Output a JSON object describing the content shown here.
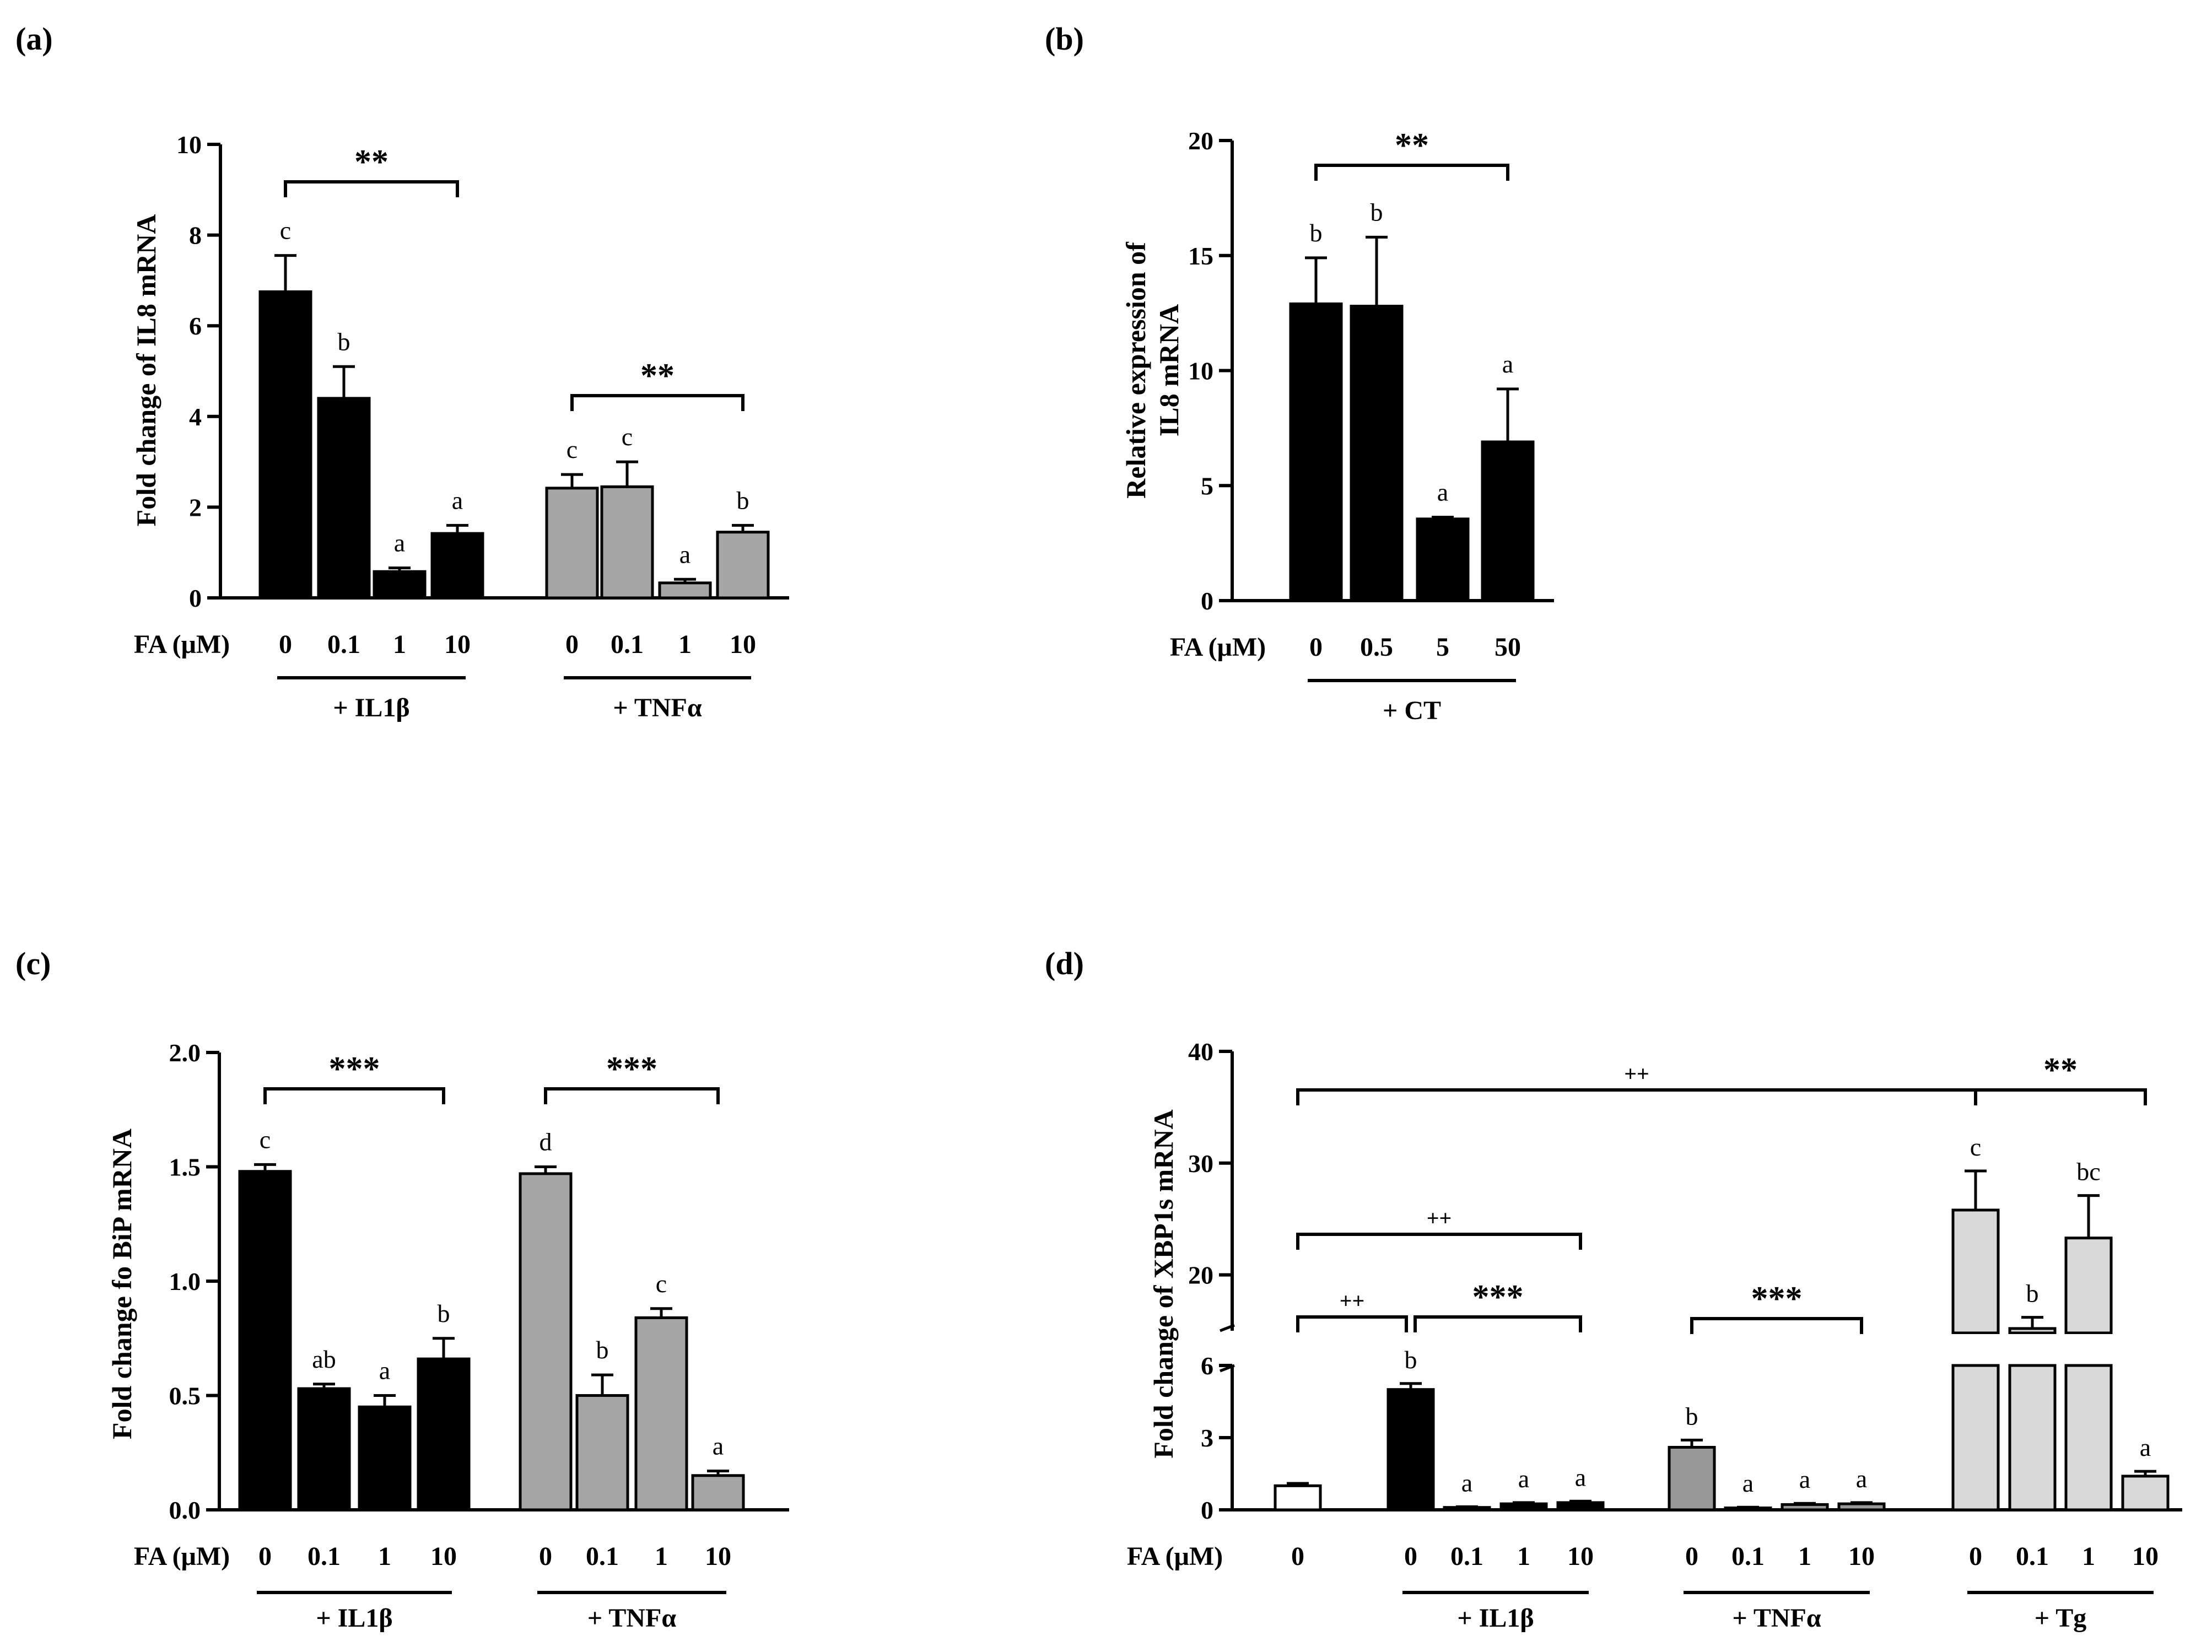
{
  "chart_data": [
    {
      "panel": "(a)",
      "type": "bar",
      "ylabel": "Fold change of IL8 mRNA",
      "ylim": [
        0,
        10
      ],
      "yticks": [
        "0",
        "2",
        "4",
        "6",
        "8",
        "10"
      ],
      "xaxis_label": "FA (μM)",
      "groups": [
        {
          "name": "+ IL1β",
          "color": "#000000",
          "categories": [
            "0",
            "0.1",
            "1",
            "10"
          ],
          "values": [
            6.75,
            4.4,
            0.58,
            1.42
          ],
          "errors": [
            0.8,
            0.7,
            0.08,
            0.18
          ],
          "letters": [
            "c",
            "b",
            "a",
            "a"
          ],
          "bracket": "**"
        },
        {
          "name": "+ TNFα",
          "color": "#a6a6a6",
          "categories": [
            "0",
            "0.1",
            "1",
            "10"
          ],
          "values": [
            2.42,
            2.45,
            0.33,
            1.45
          ],
          "errors": [
            0.3,
            0.55,
            0.08,
            0.15
          ],
          "letters": [
            "c",
            "c",
            "a",
            "b"
          ],
          "bracket": "**"
        }
      ]
    },
    {
      "panel": "(b)",
      "type": "bar",
      "ylabel": "Relative expression of IL8 mRNA",
      "ylabel_lines": [
        "Relative expression of",
        "IL8 mRNA"
      ],
      "ylim": [
        0,
        20
      ],
      "yticks": [
        "0",
        "5",
        "10",
        "15",
        "20"
      ],
      "xaxis_label": "FA (μM)",
      "groups": [
        {
          "name": "+ CT",
          "color": "#000000",
          "categories": [
            "0",
            "0.5",
            "5",
            "50"
          ],
          "values": [
            12.9,
            12.8,
            3.55,
            6.9
          ],
          "errors": [
            2.0,
            3.0,
            0.08,
            2.3
          ],
          "letters": [
            "b",
            "b",
            "a",
            "a"
          ],
          "bracket": "**"
        }
      ]
    },
    {
      "panel": "(c)",
      "type": "bar",
      "ylabel": "Fold change fo BiP mRNA",
      "ylim": [
        0,
        2.0
      ],
      "yticks": [
        "0.0",
        "0.5",
        "1.0",
        "1.5",
        "2.0"
      ],
      "xaxis_label": "FA (μM)",
      "groups": [
        {
          "name": "+ IL1β",
          "color": "#000000",
          "categories": [
            "0",
            "0.1",
            "1",
            "10"
          ],
          "values": [
            1.48,
            0.53,
            0.45,
            0.66
          ],
          "errors": [
            0.03,
            0.02,
            0.05,
            0.09
          ],
          "letters": [
            "c",
            "ab",
            "a",
            "b"
          ],
          "bracket": "***"
        },
        {
          "name": "+ TNFα",
          "color": "#a6a6a6",
          "categories": [
            "0",
            "0.1",
            "1",
            "10"
          ],
          "values": [
            1.47,
            0.5,
            0.84,
            0.15
          ],
          "errors": [
            0.03,
            0.09,
            0.04,
            0.02
          ],
          "letters": [
            "d",
            "b",
            "c",
            "a"
          ],
          "bracket": "***"
        }
      ]
    },
    {
      "panel": "(d)",
      "type": "bar",
      "ylabel": "Fold change of XBP1s mRNA",
      "y_axis_broken": true,
      "lower_ylim": [
        0,
        6
      ],
      "lower_yticks": [
        "0",
        "3",
        "6"
      ],
      "upper_ylim": [
        15,
        40
      ],
      "upper_yticks": [
        "20",
        "30",
        "40"
      ],
      "xaxis_label": "FA (μM)",
      "control": {
        "category": "0",
        "value": 1.0,
        "error": 0.1,
        "color": "#ffffff"
      },
      "groups": [
        {
          "name": "+ IL1β",
          "color": "#000000",
          "categories": [
            "0",
            "0.1",
            "1",
            "10"
          ],
          "values": [
            5.0,
            0.1,
            0.25,
            0.3
          ],
          "errors": [
            0.25,
            0.03,
            0.05,
            0.06
          ],
          "letters": [
            "b",
            "a",
            "a",
            "a"
          ],
          "bracket": "***"
        },
        {
          "name": "+ TNFα",
          "color": "#999999",
          "categories": [
            "0",
            "0.1",
            "1",
            "10"
          ],
          "values": [
            2.6,
            0.08,
            0.22,
            0.25
          ],
          "errors": [
            0.3,
            0.03,
            0.05,
            0.05
          ],
          "letters": [
            "b",
            "a",
            "a",
            "a"
          ],
          "bracket": "***"
        },
        {
          "name": "+ Tg",
          "color": "#d9d9d9",
          "categories": [
            "0",
            "0.1",
            "1",
            "10"
          ],
          "values": [
            25.8,
            15.2,
            23.3,
            1.4
          ],
          "errors": [
            3.5,
            1.0,
            3.8,
            0.2
          ],
          "letters": [
            "c",
            "b",
            "bc",
            "a"
          ],
          "bracket": "**"
        }
      ],
      "control_comparisons": [
        {
          "to": "+ Tg",
          "label": "++"
        },
        {
          "to": "+ IL1β range",
          "label": "++"
        },
        {
          "to": "+ IL1β 0",
          "label": "++"
        }
      ]
    }
  ]
}
